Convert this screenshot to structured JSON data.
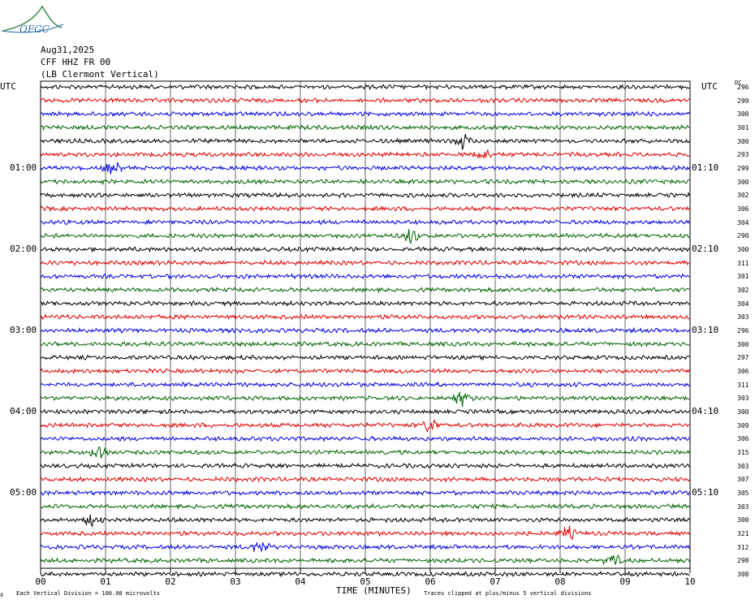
{
  "logo": {
    "text": "OFGC",
    "color": "#2a6aa8",
    "hill_color": "#3a8a4a"
  },
  "header": {
    "date": "Aug31,2025",
    "station": "CFF HHZ FR 00",
    "location": "(LB  Clermont Vertical)"
  },
  "left_label": "UTC",
  "right_label": "UTC",
  "dc_label": "DC",
  "time_label_left": [
    "01:00",
    "02:00",
    "03:00",
    "04:00",
    "05:00"
  ],
  "time_label_right": [
    "01:10",
    "02:10",
    "03:10",
    "04:10",
    "05:10"
  ],
  "dc_values": [
    "296",
    "299",
    "300",
    "301",
    "300",
    "293",
    "299",
    "300",
    "302",
    "306",
    "304",
    "290",
    "300",
    "311",
    "301",
    "302",
    "304",
    "303",
    "296",
    "300",
    "297",
    "306",
    "311",
    "303",
    "300",
    "309",
    "306",
    "315",
    "303",
    "307",
    "305",
    "303",
    "300",
    "321",
    "312",
    "298",
    "308"
  ],
  "x_ticks": [
    "00",
    "01",
    "02",
    "03",
    "04",
    "05",
    "06",
    "07",
    "08",
    "09",
    "10"
  ],
  "xlabel": "TIME (MINUTES)",
  "footer_left": "Each Vertical Division =  100.00 microvolts",
  "footer_right": "Traces clipped at plus/minus 5 vertical divisions",
  "colors": {
    "black": "#000000",
    "red": "#e00000",
    "blue": "#0000e0",
    "green": "#006400"
  },
  "chart_data": {
    "type": "line",
    "title": "",
    "xlabel": "TIME (MINUTES)",
    "xlim": [
      0,
      10
    ],
    "trace_count": 37,
    "trace_colors_cycle": [
      "black",
      "red",
      "blue",
      "green"
    ],
    "grid": "vertical lines each minute",
    "events": [
      {
        "trace": 4,
        "minute": 6.5
      },
      {
        "trace": 5,
        "minute": 6.8
      },
      {
        "trace": 6,
        "minute": 1.1
      },
      {
        "trace": 11,
        "minute": 5.7
      },
      {
        "trace": 23,
        "minute": 6.5
      },
      {
        "trace": 25,
        "minute": 6.0
      },
      {
        "trace": 27,
        "minute": 0.9
      },
      {
        "trace": 32,
        "minute": 0.8
      },
      {
        "trace": 33,
        "minute": 8.1
      },
      {
        "trace": 34,
        "minute": 3.4
      },
      {
        "trace": 35,
        "minute": 8.8
      }
    ]
  }
}
